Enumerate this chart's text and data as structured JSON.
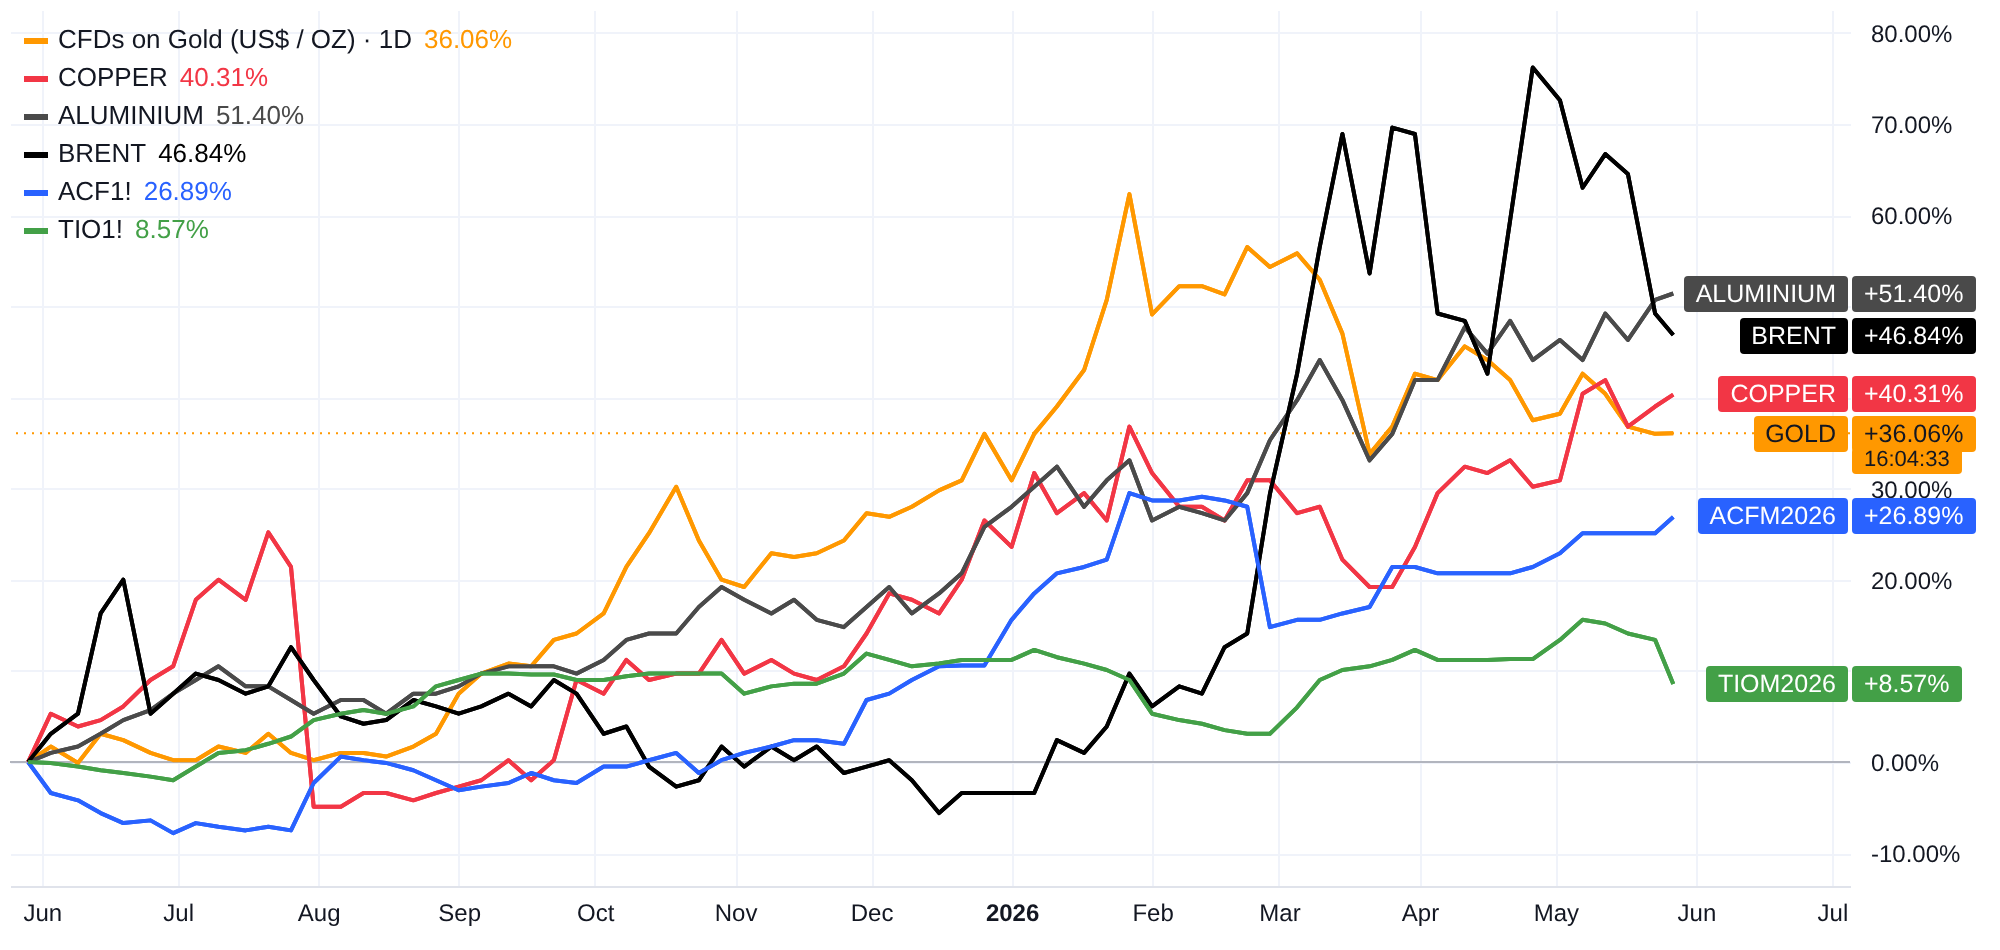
{
  "chart_data": {
    "type": "line",
    "x": [
      "2025-05-29",
      "2025-06-03",
      "2025-06-09",
      "2025-06-14",
      "2025-06-19",
      "2025-06-25",
      "2025-06-30",
      "2025-07-05",
      "2025-07-10",
      "2025-07-16",
      "2025-07-21",
      "2025-07-26",
      "2025-07-31",
      "2025-08-06",
      "2025-08-11",
      "2025-08-16",
      "2025-08-22",
      "2025-08-27",
      "2025-09-01",
      "2025-09-06",
      "2025-09-12",
      "2025-09-17",
      "2025-09-22",
      "2025-09-27",
      "2025-10-03",
      "2025-10-08",
      "2025-10-13",
      "2025-10-19",
      "2025-10-24",
      "2025-10-29",
      "2025-11-03",
      "2025-11-09",
      "2025-11-14",
      "2025-11-19",
      "2025-11-25",
      "2025-11-30",
      "2025-12-05",
      "2025-12-10",
      "2025-12-16",
      "2025-12-21",
      "2025-12-26",
      "2026-01-01",
      "2026-01-06",
      "2026-01-11",
      "2026-01-17",
      "2026-01-22",
      "2026-01-27",
      "2026-02-01",
      "2026-02-07",
      "2026-02-12",
      "2026-02-17",
      "2026-02-22",
      "2026-02-27",
      "2026-03-05",
      "2026-03-10",
      "2026-03-15",
      "2026-03-21",
      "2026-03-26",
      "2026-03-31",
      "2026-04-05",
      "2026-04-11",
      "2026-04-16",
      "2026-04-21",
      "2026-04-26",
      "2026-05-02",
      "2026-05-07",
      "2026-05-12",
      "2026-05-17",
      "2026-05-23",
      "2026-05-27"
    ],
    "series": [
      {
        "name": "CFDs on Gold (US$ / OZ) · 1D",
        "color": "#ff9800",
        "values": [
          0,
          1.7,
          -0.1,
          3.1,
          2.4,
          1,
          0.2,
          0.2,
          1.7,
          1,
          3.1,
          1,
          0.2,
          1,
          1,
          0.6,
          1.7,
          3.1,
          7.5,
          9.7,
          10.8,
          10.5,
          13.4,
          14.1,
          16.3,
          21.4,
          25.1,
          30.2,
          24.3,
          20,
          19.2,
          22.9,
          22.5,
          22.9,
          24.3,
          27.3,
          26.9,
          28,
          29.8,
          30.9,
          36,
          30.9,
          36,
          39,
          43,
          50.7,
          62.3,
          49.1,
          52.2,
          52.2,
          51.3,
          56.5,
          54.3,
          55.8,
          52.9,
          47,
          33.8,
          36.8,
          42.6,
          41.9,
          45.6,
          44.1,
          41.9,
          37.5,
          38.2,
          42.6,
          40.4,
          36.8,
          36,
          36.06
        ]
      },
      {
        "name": "COPPER",
        "color": "#f23645",
        "values": [
          0,
          5.3,
          3.9,
          4.6,
          6.1,
          9,
          10.5,
          17.8,
          20,
          17.8,
          25.2,
          21.4,
          -4.9,
          -4.9,
          -3.4,
          -3.4,
          -4.2,
          -3.4,
          -2.7,
          -2,
          0.2,
          -2,
          0.2,
          9,
          7.5,
          11.2,
          9,
          9.7,
          9.7,
          13.4,
          9.7,
          11.2,
          9.7,
          9,
          10.5,
          14.1,
          18.5,
          17.8,
          16.3,
          20,
          26.5,
          23.6,
          31.7,
          27.3,
          29.5,
          26.5,
          36.8,
          31.7,
          28,
          28,
          26.5,
          30.9,
          30.9,
          27.3,
          28,
          22.2,
          19.2,
          19.2,
          23.6,
          29.5,
          32.4,
          31.7,
          33.1,
          30.2,
          30.9,
          40.4,
          41.9,
          36.8,
          39,
          40.31
        ]
      },
      {
        "name": "ALUMINIUM",
        "color": "#4a4a4a",
        "values": [
          0,
          1,
          1.7,
          3.1,
          4.6,
          5.7,
          7.5,
          9,
          10.5,
          8.3,
          8.3,
          6.8,
          5.3,
          6.8,
          6.8,
          5.3,
          7.5,
          7.5,
          8.3,
          9.7,
          10.5,
          10.5,
          10.5,
          9.7,
          11.2,
          13.4,
          14.1,
          14.1,
          17,
          19.2,
          17.8,
          16.3,
          17.8,
          15.6,
          14.8,
          17,
          19.2,
          16.3,
          18.5,
          20.7,
          25.8,
          28,
          30.2,
          32.4,
          28,
          30.9,
          33.1,
          26.5,
          28,
          27.3,
          26.5,
          29.5,
          35.3,
          39.7,
          44.1,
          39.7,
          33.1,
          36,
          41.9,
          41.9,
          47.7,
          44.8,
          48.4,
          44.1,
          46.3,
          44.1,
          49.2,
          46.3,
          50.7,
          51.4
        ]
      },
      {
        "name": "BRENT",
        "color": "#000000",
        "values": [
          0,
          3.1,
          5.3,
          16.3,
          20,
          5.3,
          7.5,
          9.7,
          9,
          7.5,
          8.3,
          12.6,
          9,
          5,
          4.2,
          4.6,
          6.8,
          6.1,
          5.3,
          6.1,
          7.5,
          6.1,
          9,
          7.5,
          3.1,
          3.9,
          -0.5,
          -2.7,
          -2,
          1.7,
          -0.5,
          1.7,
          0.2,
          1.7,
          -1.2,
          -0.5,
          0.2,
          -2,
          -5.6,
          -3.4,
          -3.4,
          -3.4,
          -3.4,
          2.4,
          1,
          3.9,
          9.7,
          6.1,
          8.3,
          7.5,
          12.6,
          14.1,
          29.4,
          42.6,
          56.5,
          68.9,
          53.6,
          69.6,
          68.9,
          49.2,
          48.4,
          42.6,
          59.4,
          76.2,
          72.6,
          63,
          66.7,
          64.5,
          49.2,
          46.84
        ]
      },
      {
        "name": "ACF1!",
        "color": "#2962ff",
        "values": [
          0,
          -3.4,
          -4.2,
          -5.6,
          -6.7,
          -6.4,
          -7.8,
          -6.7,
          -7.1,
          -7.5,
          -7.1,
          -7.5,
          -2.3,
          0.6,
          0.2,
          -0.1,
          -0.9,
          -2,
          -3.1,
          -2.7,
          -2.3,
          -1.2,
          -2,
          -2.3,
          -0.5,
          -0.5,
          0.2,
          1,
          -1.2,
          0.2,
          1,
          1.7,
          2.4,
          2.4,
          2,
          6.8,
          7.5,
          9,
          10.5,
          10.6,
          10.6,
          15.6,
          18.5,
          20.7,
          21.4,
          22.2,
          29.5,
          28.7,
          28.7,
          29.1,
          28.7,
          28,
          14.8,
          15.6,
          15.6,
          16.3,
          17,
          21.4,
          21.4,
          20.7,
          20.7,
          20.7,
          20.7,
          21.4,
          22.9,
          25.1,
          25.1,
          25.1,
          25.1,
          26.89
        ]
      },
      {
        "name": "TIO1!",
        "color": "#43a047",
        "values": [
          0,
          -0.1,
          -0.5,
          -0.9,
          -1.2,
          -1.6,
          -2,
          -0.5,
          1,
          1.3,
          2,
          2.8,
          4.6,
          5.3,
          5.7,
          5.3,
          6.1,
          8.3,
          9,
          9.7,
          9.7,
          9.6,
          9.6,
          9,
          9,
          9.4,
          9.7,
          9.7,
          9.7,
          9.7,
          7.5,
          8.3,
          8.6,
          8.6,
          9.7,
          11.9,
          11.2,
          10.5,
          10.8,
          11.2,
          11.2,
          11.2,
          12.3,
          11.5,
          10.8,
          10.1,
          9,
          5.3,
          4.6,
          4.2,
          3.5,
          3.1,
          3.1,
          6,
          9,
          10.1,
          10.5,
          11.2,
          12.3,
          11.2,
          11.2,
          11.2,
          11.3,
          11.3,
          13.4,
          15.6,
          15.2,
          14.1,
          13.4,
          8.57
        ]
      }
    ],
    "xlim": [
      "2025-05-25",
      "2026-07-05"
    ],
    "xticks": [
      {
        "value": "2025-06-01",
        "label": "Jun"
      },
      {
        "value": "2025-07-01",
        "label": "Jul"
      },
      {
        "value": "2025-08-01",
        "label": "Aug"
      },
      {
        "value": "2025-09-01",
        "label": "Sep"
      },
      {
        "value": "2025-10-01",
        "label": "Oct"
      },
      {
        "value": "2025-11-01",
        "label": "Nov"
      },
      {
        "value": "2025-12-01",
        "label": "Dec"
      },
      {
        "value": "2026-01-01",
        "label": "2026"
      },
      {
        "value": "2026-02-01",
        "label": "Feb"
      },
      {
        "value": "2026-03-01",
        "label": "Mar"
      },
      {
        "value": "2026-04-01",
        "label": "Apr"
      },
      {
        "value": "2026-05-01",
        "label": "May"
      },
      {
        "value": "2026-06-01",
        "label": "Jun"
      },
      {
        "value": "2026-07-01",
        "label": "Jul"
      }
    ],
    "ylim": [
      -13.6,
      82.5
    ],
    "yticks": [
      {
        "value": -10,
        "label": "-10.00%"
      },
      {
        "value": 0,
        "label": "0.00%"
      },
      {
        "value": 10,
        "label": null
      },
      {
        "value": 20,
        "label": "20.00%"
      },
      {
        "value": 30,
        "label": "30.00%"
      },
      {
        "value": 40,
        "label": null
      },
      {
        "value": 50,
        "label": null
      },
      {
        "value": 60,
        "label": "60.00%"
      },
      {
        "value": 70,
        "label": "70.00%"
      },
      {
        "value": 80,
        "label": "80.00%"
      }
    ],
    "grid": true,
    "legend": "top left",
    "ref_lines": [
      {
        "axis": "y",
        "value": 0,
        "color": "#b2b5be",
        "line_style": "solid"
      },
      {
        "axis": "y",
        "value": 36.06,
        "color": "#ff9800",
        "line_style": "dotted"
      }
    ],
    "annotations": [
      "GOLD +36.06%",
      "COPPER +40.31%",
      "ALUMINIUM +51.40%",
      "BRENT +46.84%",
      "ACFM2026 +26.89%",
      "TIOM2026 +8.57%",
      "36.06%",
      "40.31%",
      "51.40%",
      "46.84%",
      "26.89%",
      "8.57%",
      "16:04:33"
    ]
  }
}
